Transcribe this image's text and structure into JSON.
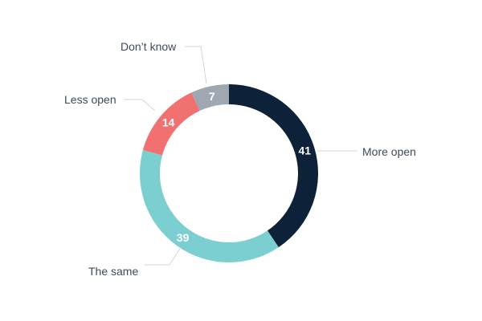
{
  "chart_data": {
    "type": "pie",
    "donut": true,
    "title": "",
    "legend": "none",
    "slices": [
      {
        "label": "More open",
        "value": 41,
        "color": "#0d2238"
      },
      {
        "label": "The same",
        "value": 39,
        "color": "#7ccfd0"
      },
      {
        "label": "Less open",
        "value": 14,
        "color": "#f07170"
      },
      {
        "label": "Don’t know",
        "value": 7,
        "color": "#9fa8b1"
      }
    ]
  }
}
